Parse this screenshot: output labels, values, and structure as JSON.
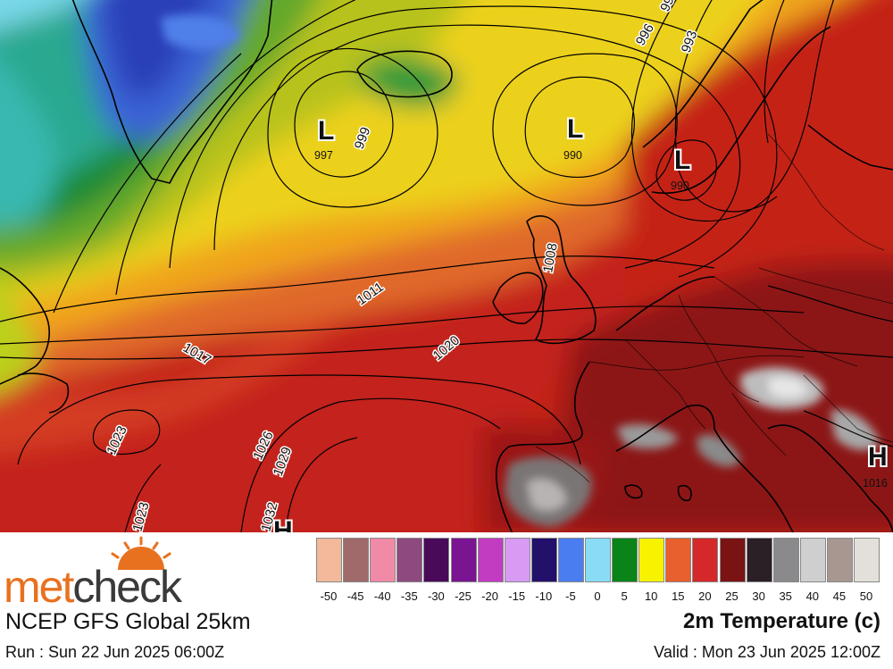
{
  "map": {
    "pressure_centres": [
      {
        "type": "L",
        "value": "997"
      },
      {
        "type": "L",
        "value": "990"
      },
      {
        "type": "L",
        "value": "990"
      },
      {
        "type": "H",
        "value": "1016"
      },
      {
        "type": "H",
        "value": ""
      }
    ],
    "isobar_labels": [
      "996",
      "993",
      "999",
      "999",
      "1011",
      "1017",
      "1020",
      "1023",
      "1026",
      "1029",
      "1023",
      "1032",
      "1008"
    ]
  },
  "footer": {
    "brand_part1": "met",
    "brand_part2": "check",
    "model": "NCEP GFS Global 25km",
    "run": "Run : Sun 22 Jun 2025 06:00Z",
    "parameter": "2m Temperature (c)",
    "valid": "Valid : Mon 23 Jun 2025 12:00Z"
  },
  "legend": {
    "ticks": [
      "-50",
      "-45",
      "-40",
      "-35",
      "-30",
      "-25",
      "-20",
      "-15",
      "-10",
      "-5",
      "0",
      "5",
      "10",
      "15",
      "20",
      "25",
      "30",
      "35",
      "40",
      "45",
      "50"
    ],
    "colors": [
      "#f2b99a",
      "#a06a6a",
      "#f08aa6",
      "#8e4a7e",
      "#4a0a5a",
      "#7a1490",
      "#c23cc2",
      "#d89af2",
      "#22106a",
      "#4a7ef0",
      "#8adcf6",
      "#0a8418",
      "#f6f200",
      "#e8602e",
      "#d4282a",
      "#7a1414",
      "#2a2026",
      "#8a8a8c",
      "#cfcfcf",
      "#a89690",
      "#e2e0d8"
    ]
  }
}
